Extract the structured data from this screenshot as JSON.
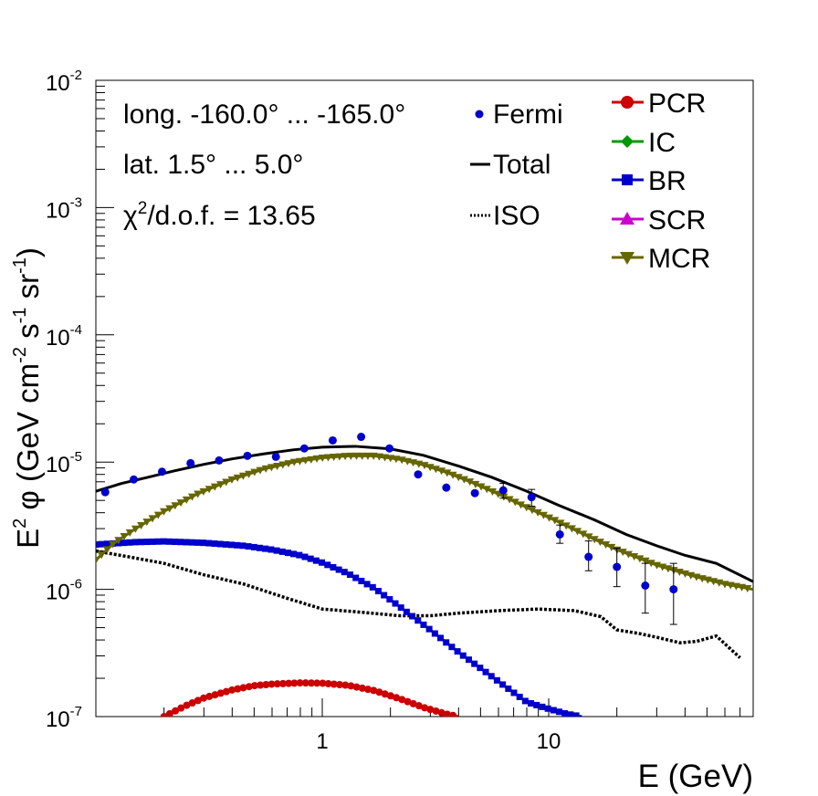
{
  "chart_data": {
    "type": "scatter",
    "xlabel": "E (GeV)",
    "ylabel": {
      "prefix": "E",
      "prefix_sup": "2",
      "main": " φ (GeV cm",
      "sup1": "-2",
      "mid": " s",
      "sup2": "-1",
      "mid2": " sr",
      "sup3": "-1",
      "end": ")"
    },
    "xscale": "log",
    "yscale": "log",
    "xlim": [
      0.1,
      80
    ],
    "ylim": [
      1e-07,
      0.01
    ],
    "x_tick_labels": [
      {
        "value": 1,
        "label": "1"
      },
      {
        "value": 10,
        "label": "10"
      }
    ],
    "y_tick_labels": [
      {
        "value": 1e-07,
        "base": "10",
        "exp": "-7"
      },
      {
        "value": 1e-06,
        "base": "10",
        "exp": "-6"
      },
      {
        "value": 1e-05,
        "base": "10",
        "exp": "-5"
      },
      {
        "value": 0.0001,
        "base": "10",
        "exp": "-4"
      },
      {
        "value": 0.001,
        "base": "10",
        "exp": "-3"
      },
      {
        "value": 0.01,
        "base": "10",
        "exp": "-2"
      }
    ],
    "annotations": {
      "longitude": "long. -160.0° ... -165.0°",
      "latitude": "lat. 1.5° ... 5.0°",
      "chi_prefix": "χ",
      "chi_sup": "2",
      "chi_rest": "/d.o.f. = 13.65"
    },
    "legend_left": [
      {
        "key": "fermi",
        "label": "Fermi",
        "color": "#0000cc"
      },
      {
        "key": "total",
        "label": "Total",
        "color": "#000000"
      },
      {
        "key": "iso",
        "label": "ISO",
        "color": "#000000"
      }
    ],
    "legend_right": [
      {
        "key": "pcr",
        "label": "PCR",
        "color": "#cc0000"
      },
      {
        "key": "ic",
        "label": "IC",
        "color": "#009900"
      },
      {
        "key": "br",
        "label": "BR",
        "color": "#0000cc"
      },
      {
        "key": "scr",
        "label": "SCR",
        "color": "#cc00cc"
      },
      {
        "key": "mcr",
        "label": "MCR",
        "color": "#666600"
      }
    ],
    "fermi": {
      "name": "Fermi",
      "color": "#0000cc",
      "points": [
        {
          "x": 0.11,
          "y": 5.8e-06
        },
        {
          "x": 0.147,
          "y": 7.3e-06
        },
        {
          "x": 0.196,
          "y": 8.4e-06
        },
        {
          "x": 0.262,
          "y": 9.8e-06
        },
        {
          "x": 0.35,
          "y": 1.03e-05
        },
        {
          "x": 0.467,
          "y": 1.12e-05
        },
        {
          "x": 0.624,
          "y": 1.1e-05
        },
        {
          "x": 0.833,
          "y": 1.28e-05
        },
        {
          "x": 1.112,
          "y": 1.48e-05
        },
        {
          "x": 1.485,
          "y": 1.58e-05
        },
        {
          "x": 1.98,
          "y": 1.28e-05
        },
        {
          "x": 2.65,
          "y": 8e-06
        },
        {
          "x": 3.53,
          "y": 6.3e-06
        },
        {
          "x": 4.72,
          "y": 5.7e-06
        },
        {
          "x": 6.3,
          "y": 6e-06,
          "err": [
            5.2e-06,
            6.8e-06
          ]
        },
        {
          "x": 8.4,
          "y": 5.3e-06,
          "err": [
            4.5e-06,
            6.1e-06
          ]
        },
        {
          "x": 11.2,
          "y": 2.7e-06,
          "err": [
            2.3e-06,
            3.2e-06
          ]
        },
        {
          "x": 15.0,
          "y": 1.8e-06,
          "err": [
            1.4e-06,
            2.4e-06
          ]
        },
        {
          "x": 20.0,
          "y": 1.5e-06,
          "err": [
            1.05e-06,
            2.1e-06
          ]
        },
        {
          "x": 26.7,
          "y": 1.07e-06,
          "err": [
            6.5e-07,
            1.6e-06
          ]
        },
        {
          "x": 35.6,
          "y": 1e-06,
          "err": [
            5.3e-07,
            1.6e-06
          ]
        }
      ]
    },
    "total": {
      "name": "Total",
      "color": "#000000",
      "x": [
        0.1,
        0.13,
        0.17,
        0.22,
        0.3,
        0.4,
        0.55,
        0.75,
        1.0,
        1.4,
        2.0,
        2.8,
        4.0,
        5.6,
        8.0,
        11.0,
        16.0,
        22.0,
        30.0,
        40.0,
        55.0,
        80.0
      ],
      "y": [
        5.9e-06,
        6.8e-06,
        7.6e-06,
        8.5e-06,
        9.6e-06,
        1.06e-05,
        1.16e-05,
        1.25e-05,
        1.31e-05,
        1.33e-05,
        1.27e-05,
        1.13e-05,
        9.3e-06,
        7.6e-06,
        5.9e-06,
        4.6e-06,
        3.5e-06,
        2.7e-06,
        2.2e-06,
        1.85e-06,
        1.6e-06,
        1.15e-06
      ]
    },
    "iso": {
      "name": "ISO",
      "color": "#000000",
      "x": [
        0.1,
        0.14,
        0.2,
        0.3,
        0.45,
        0.7,
        1.0,
        1.5,
        2.2,
        3.0,
        4.0,
        6.0,
        9.0,
        13.0,
        17.0,
        20.0,
        25.0,
        30.0,
        38.0,
        45.0,
        55.0,
        70.0
      ],
      "y": [
        2e-06,
        1.8e-06,
        1.6e-06,
        1.3e-06,
        1.1e-06,
        8.5e-07,
        7e-07,
        6.6e-07,
        6.2e-07,
        6.2e-07,
        6.5e-07,
        6.8e-07,
        7e-07,
        6.8e-07,
        6.1e-07,
        4.8e-07,
        4.5e-07,
        4.2e-07,
        3.8e-07,
        3.9e-07,
        4.3e-07,
        2.9e-07
      ]
    },
    "br": {
      "name": "BR",
      "color": "#0000cc",
      "x": [
        0.1,
        0.15,
        0.2,
        0.3,
        0.45,
        0.6,
        0.8,
        1.0,
        1.3,
        1.7,
        2.2,
        3.0,
        4.0,
        5.0,
        6.5,
        8.0,
        10.0,
        12.0,
        14.0
      ],
      "y": [
        2.25e-06,
        2.35e-06,
        2.38e-06,
        2.32e-06,
        2.2e-06,
        2.05e-06,
        1.85e-06,
        1.62e-06,
        1.33e-06,
        1.02e-06,
        7.3e-07,
        4.8e-07,
        3.2e-07,
        2.4e-07,
        1.7e-07,
        1.3e-07,
        1.15e-07,
        1.05e-07,
        1e-07
      ]
    },
    "mcr": {
      "name": "MCR",
      "color": "#666600",
      "x": [
        0.1,
        0.12,
        0.15,
        0.2,
        0.28,
        0.4,
        0.55,
        0.75,
        1.0,
        1.3,
        1.7,
        2.2,
        2.8,
        3.6,
        4.5,
        6.0,
        8.0,
        11.0,
        15.0,
        20.0,
        30.0,
        45.0,
        60.0,
        80.0
      ],
      "y": [
        1.7e-06,
        2.3e-06,
        3e-06,
        4.1e-06,
        5.6e-06,
        7.3e-06,
        8.8e-06,
        1e-05,
        1.08e-05,
        1.12e-05,
        1.12e-05,
        1.05e-05,
        9.5e-06,
        8.2e-06,
        7e-06,
        5.6e-06,
        4.4e-06,
        3.4e-06,
        2.6e-06,
        2.05e-06,
        1.55e-06,
        1.25e-06,
        1.1e-06,
        1e-06
      ]
    },
    "pcr": {
      "name": "PCR",
      "color": "#cc0000",
      "x": [
        0.2,
        0.25,
        0.3,
        0.4,
        0.5,
        0.6,
        0.8,
        1.0,
        1.3,
        1.7,
        2.2,
        2.8,
        3.5,
        4.0
      ],
      "y": [
        1e-07,
        1.22e-07,
        1.4e-07,
        1.62e-07,
        1.75e-07,
        1.8e-07,
        1.84e-07,
        1.83e-07,
        1.76e-07,
        1.6e-07,
        1.38e-07,
        1.18e-07,
        1.05e-07,
        1e-07
      ]
    }
  }
}
